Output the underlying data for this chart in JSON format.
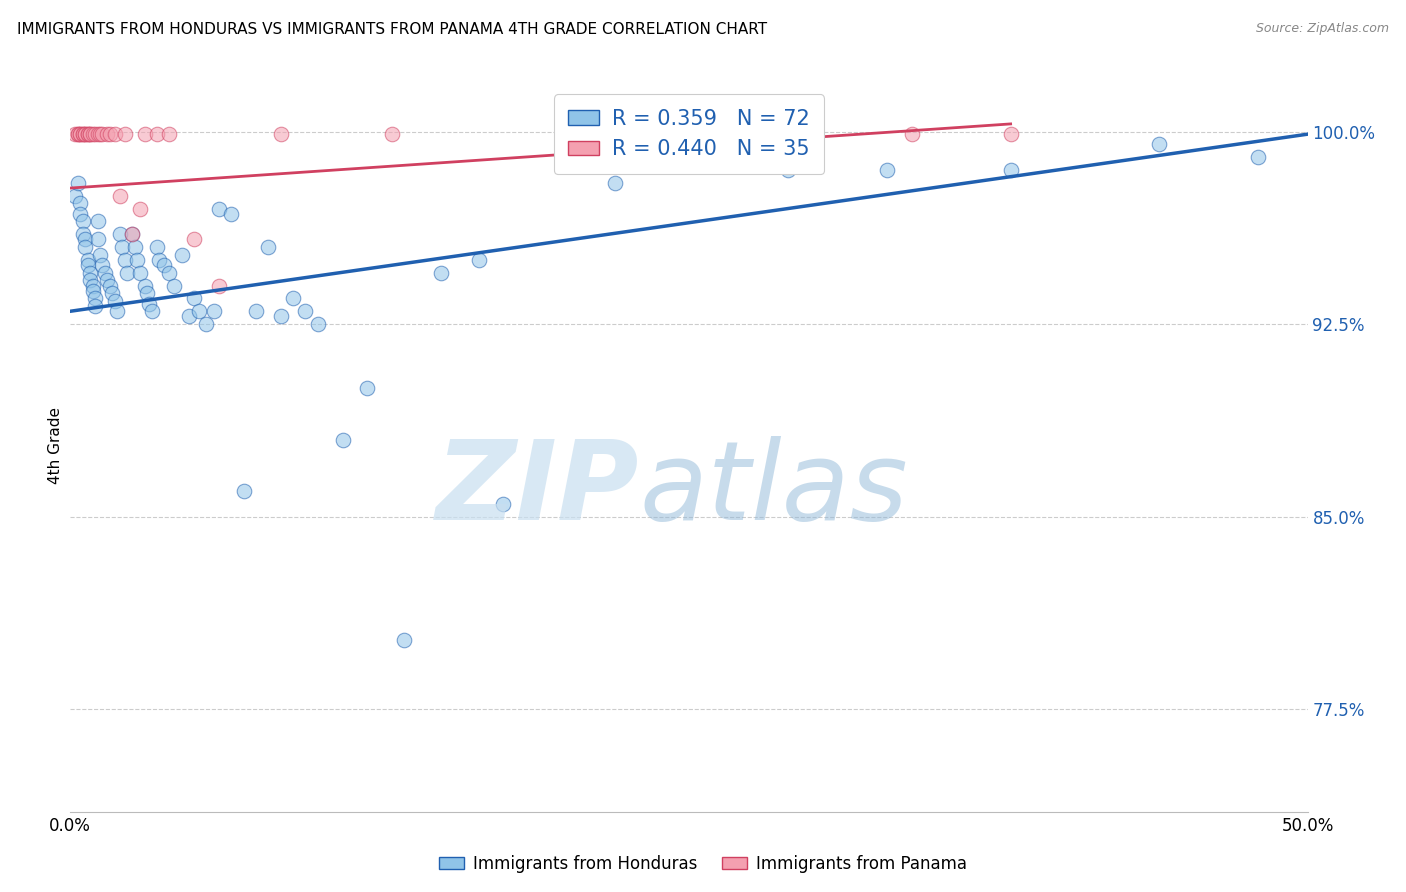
{
  "title": "IMMIGRANTS FROM HONDURAS VS IMMIGRANTS FROM PANAMA 4TH GRADE CORRELATION CHART",
  "source": "Source: ZipAtlas.com",
  "ylabel": "4th Grade",
  "yticks": [
    0.775,
    0.85,
    0.925,
    1.0
  ],
  "ytick_labels": [
    "77.5%",
    "85.0%",
    "92.5%",
    "100.0%"
  ],
  "xlim": [
    0.0,
    0.5
  ],
  "ylim": [
    0.735,
    1.02
  ],
  "legend_blue_r": "0.359",
  "legend_blue_n": "72",
  "legend_pink_r": "0.440",
  "legend_pink_n": "35",
  "blue_color": "#90c4e8",
  "pink_color": "#f4a0b0",
  "line_blue_color": "#2060b0",
  "line_pink_color": "#d04060",
  "blue_scatter_x": [
    0.002,
    0.003,
    0.004,
    0.004,
    0.005,
    0.005,
    0.006,
    0.006,
    0.007,
    0.007,
    0.008,
    0.008,
    0.009,
    0.009,
    0.01,
    0.01,
    0.011,
    0.011,
    0.012,
    0.013,
    0.014,
    0.015,
    0.016,
    0.017,
    0.018,
    0.019,
    0.02,
    0.021,
    0.022,
    0.023,
    0.025,
    0.026,
    0.027,
    0.028,
    0.03,
    0.031,
    0.032,
    0.033,
    0.035,
    0.036,
    0.038,
    0.04,
    0.042,
    0.045,
    0.048,
    0.05,
    0.052,
    0.055,
    0.058,
    0.06,
    0.065,
    0.07,
    0.075,
    0.08,
    0.085,
    0.09,
    0.095,
    0.1,
    0.11,
    0.12,
    0.135,
    0.15,
    0.165,
    0.175,
    0.2,
    0.22,
    0.25,
    0.29,
    0.33,
    0.38,
    0.44,
    0.48
  ],
  "blue_scatter_y": [
    0.975,
    0.98,
    0.972,
    0.968,
    0.965,
    0.96,
    0.958,
    0.955,
    0.95,
    0.948,
    0.945,
    0.942,
    0.94,
    0.938,
    0.935,
    0.932,
    0.965,
    0.958,
    0.952,
    0.948,
    0.945,
    0.942,
    0.94,
    0.937,
    0.934,
    0.93,
    0.96,
    0.955,
    0.95,
    0.945,
    0.96,
    0.955,
    0.95,
    0.945,
    0.94,
    0.937,
    0.933,
    0.93,
    0.955,
    0.95,
    0.948,
    0.945,
    0.94,
    0.952,
    0.928,
    0.935,
    0.93,
    0.925,
    0.93,
    0.97,
    0.968,
    0.86,
    0.93,
    0.955,
    0.928,
    0.935,
    0.93,
    0.925,
    0.88,
    0.9,
    0.802,
    0.945,
    0.95,
    0.855,
    0.99,
    0.98,
    0.995,
    0.985,
    0.985,
    0.985,
    0.995,
    0.99
  ],
  "pink_scatter_x": [
    0.002,
    0.003,
    0.003,
    0.004,
    0.004,
    0.005,
    0.005,
    0.006,
    0.006,
    0.007,
    0.007,
    0.008,
    0.008,
    0.009,
    0.01,
    0.011,
    0.012,
    0.013,
    0.015,
    0.016,
    0.018,
    0.02,
    0.022,
    0.025,
    0.028,
    0.03,
    0.035,
    0.04,
    0.05,
    0.06,
    0.085,
    0.13,
    0.28,
    0.34,
    0.38
  ],
  "pink_scatter_y": [
    0.999,
    0.999,
    0.999,
    0.999,
    0.999,
    0.999,
    0.999,
    0.999,
    0.999,
    0.999,
    0.999,
    0.999,
    0.999,
    0.999,
    0.999,
    0.999,
    0.999,
    0.999,
    0.999,
    0.999,
    0.999,
    0.975,
    0.999,
    0.96,
    0.97,
    0.999,
    0.999,
    0.999,
    0.958,
    0.94,
    0.999,
    0.999,
    0.999,
    0.999,
    0.999
  ],
  "blue_line_x0": 0.0,
  "blue_line_x1": 0.5,
  "blue_line_y0": 0.93,
  "blue_line_y1": 0.999,
  "pink_line_x0": 0.0,
  "pink_line_x1": 0.38,
  "pink_line_y0": 0.978,
  "pink_line_y1": 1.003
}
